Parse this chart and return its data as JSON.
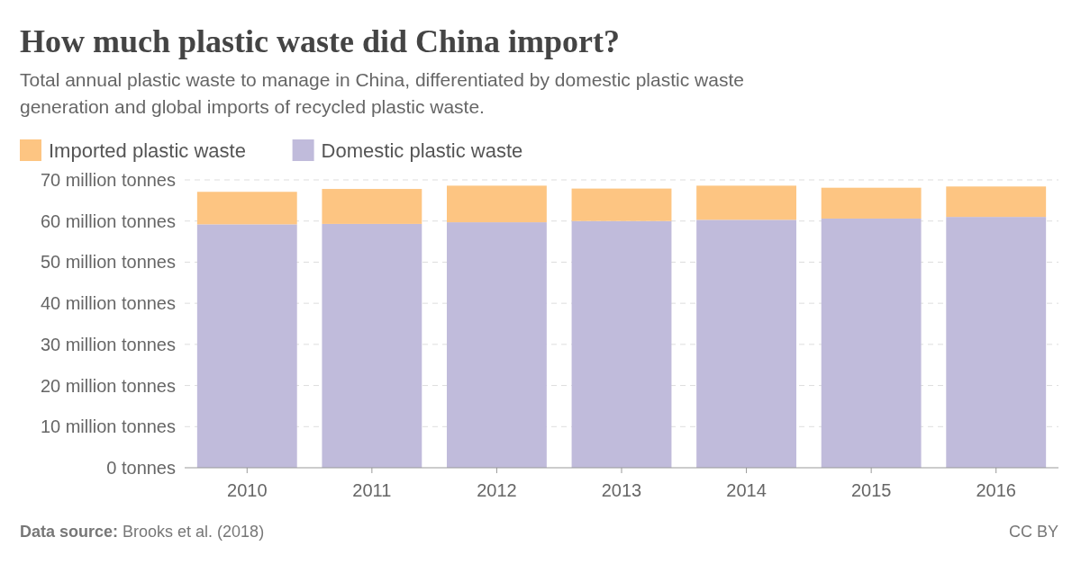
{
  "chart_data": {
    "type": "bar",
    "stacked": true,
    "title": "How much plastic waste did China import?",
    "subtitle": "Total annual plastic waste to manage in China, differentiated by domestic plastic waste generation and global imports of recycled plastic waste.",
    "categories": [
      "2010",
      "2011",
      "2012",
      "2013",
      "2014",
      "2015",
      "2016"
    ],
    "series": [
      {
        "name": "Domestic plastic waste",
        "color": "#c0bbdb",
        "values": [
          59.2,
          59.3,
          59.7,
          60.0,
          60.3,
          60.6,
          61.0
        ]
      },
      {
        "name": "Imported plastic waste",
        "color": "#fdc582",
        "values": [
          7.9,
          8.5,
          8.9,
          7.9,
          8.3,
          7.5,
          7.4
        ]
      }
    ],
    "ylim": [
      0,
      70
    ],
    "yticks": [
      {
        "value": 0,
        "label": "0 tonnes"
      },
      {
        "value": 10,
        "label": "10 million tonnes"
      },
      {
        "value": 20,
        "label": "20 million tonnes"
      },
      {
        "value": 30,
        "label": "30 million tonnes"
      },
      {
        "value": 40,
        "label": "40 million tonnes"
      },
      {
        "value": 50,
        "label": "50 million tonnes"
      },
      {
        "value": 60,
        "label": "60 million tonnes"
      },
      {
        "value": 70,
        "label": "70 million tonnes"
      }
    ],
    "grid": "y",
    "legend": "top left",
    "annotations": [
      "Data source: Brooks et al. (2018)",
      "CC BY"
    ]
  }
}
